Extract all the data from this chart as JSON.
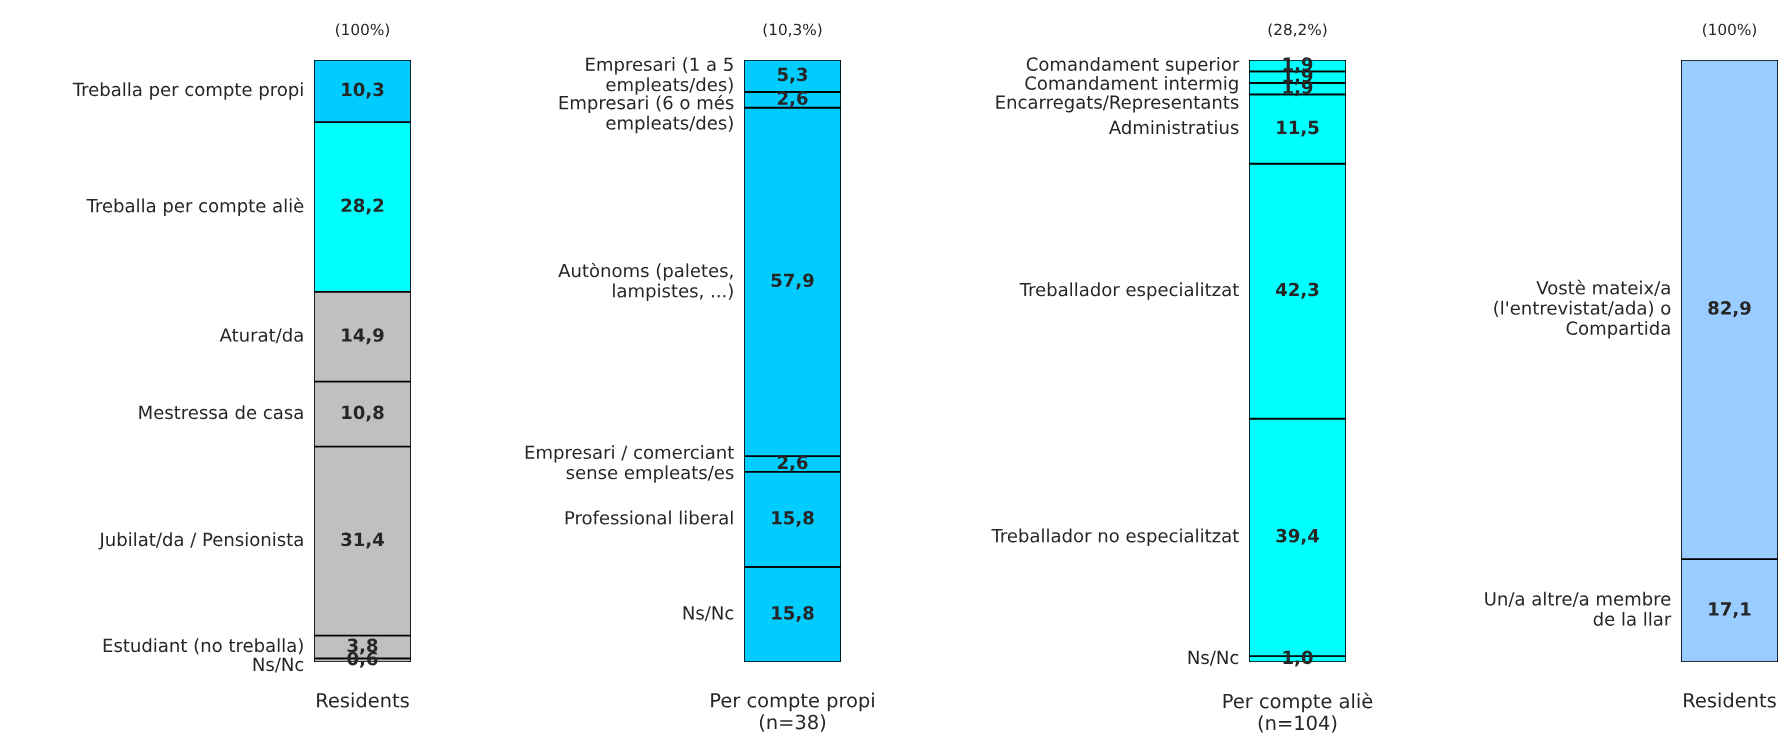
{
  "chart_data": [
    {
      "type": "bar",
      "stacked": true,
      "title": "(100%)",
      "categories": [
        "Residents"
      ],
      "tick_labels": "x",
      "legend": false,
      "series": [
        {
          "name": "Ns/Nc",
          "color": "#c0c0c0",
          "values": [
            0.6
          ],
          "value_labels": [
            "0,6"
          ]
        },
        {
          "name": "Estudiant (no treballa)",
          "color": "#c0c0c0",
          "values": [
            3.8
          ],
          "value_labels": [
            "3,8"
          ]
        },
        {
          "name": "Jubilat/da / Pensionista",
          "color": "#c0c0c0",
          "values": [
            31.4
          ],
          "value_labels": [
            "31,4"
          ]
        },
        {
          "name": "Mestressa de casa",
          "color": "#c0c0c0",
          "values": [
            10.8
          ],
          "value_labels": [
            "10,8"
          ]
        },
        {
          "name": "Aturat/da",
          "color": "#c0c0c0",
          "values": [
            14.9
          ],
          "value_labels": [
            "14,9"
          ]
        },
        {
          "name": "Treballa per compte aliè",
          "color": "#00ffff",
          "values": [
            28.2
          ],
          "value_labels": [
            "28,2"
          ]
        },
        {
          "name": "Treballa per compte propi",
          "color": "#00ccff",
          "values": [
            10.3
          ],
          "value_labels": [
            "10,3"
          ]
        }
      ]
    },
    {
      "type": "bar",
      "stacked": true,
      "title": "(10,3%)",
      "categories": [
        "Per compte propi\n(n=38)"
      ],
      "tick_labels": "x",
      "legend": false,
      "series": [
        {
          "name": "Ns/Nc",
          "color": "#00ccff",
          "values": [
            15.8
          ],
          "value_labels": [
            "15,8"
          ]
        },
        {
          "name": "Professional liberal",
          "color": "#00ccff",
          "values": [
            15.8
          ],
          "value_labels": [
            "15,8"
          ]
        },
        {
          "name": "Empresari / comerciant\nsense empleats/es",
          "color": "#00ccff",
          "values": [
            2.6
          ],
          "value_labels": [
            "2,6"
          ]
        },
        {
          "name": "Autònoms (paletes,\nlampistes, ...)",
          "color": "#00ccff",
          "values": [
            57.9
          ],
          "value_labels": [
            "57,9"
          ]
        },
        {
          "name": "Empresari (6 o més\nempleats/des)",
          "color": "#00ccff",
          "values": [
            2.6
          ],
          "value_labels": [
            "2,6"
          ]
        },
        {
          "name": "Empresari (1 a 5\nempleats/des)",
          "color": "#00ccff",
          "values": [
            5.3
          ],
          "value_labels": [
            "5,3"
          ]
        }
      ]
    },
    {
      "type": "bar",
      "stacked": true,
      "title": "(28,2%)",
      "categories": [
        "Per compte aliè\n(n=104)"
      ],
      "tick_labels": "x",
      "legend": false,
      "series": [
        {
          "name": "Ns/Nc",
          "color": "#00ffff",
          "values": [
            1.0
          ],
          "value_labels": [
            "1,0"
          ]
        },
        {
          "name": "Treballador no especialitzat",
          "color": "#00ffff",
          "values": [
            39.4
          ],
          "value_labels": [
            "39,4"
          ]
        },
        {
          "name": "Treballador especialitzat",
          "color": "#00ffff",
          "values": [
            42.3
          ],
          "value_labels": [
            "42,3"
          ]
        },
        {
          "name": "Administratius",
          "color": "#00ffff",
          "values": [
            11.5
          ],
          "value_labels": [
            "11,5"
          ]
        },
        {
          "name": "Encarregats/Representants",
          "color": "#00ffff",
          "values": [
            1.9
          ],
          "value_labels": [
            "1,9"
          ]
        },
        {
          "name": "Comandament intermig",
          "color": "#00ffff",
          "values": [
            1.9
          ],
          "value_labels": [
            "1,9"
          ]
        },
        {
          "name": "Comandament superior",
          "color": "#00ffff",
          "values": [
            1.9
          ],
          "value_labels": [
            "1,9"
          ]
        }
      ]
    },
    {
      "type": "bar",
      "stacked": true,
      "title": "(100%)",
      "categories": [
        "Residents"
      ],
      "tick_labels": "x",
      "legend": false,
      "series": [
        {
          "name": "Un/a altre/a membre\nde la llar",
          "color": "#99ccff",
          "values": [
            17.1
          ],
          "value_labels": [
            "17,1"
          ]
        },
        {
          "name": "Vostè mateix/a\n(l'entrevistat/ada) o\nCompartida",
          "color": "#99ccff",
          "values": [
            82.9
          ],
          "value_labels": [
            "82,9"
          ]
        }
      ]
    }
  ]
}
